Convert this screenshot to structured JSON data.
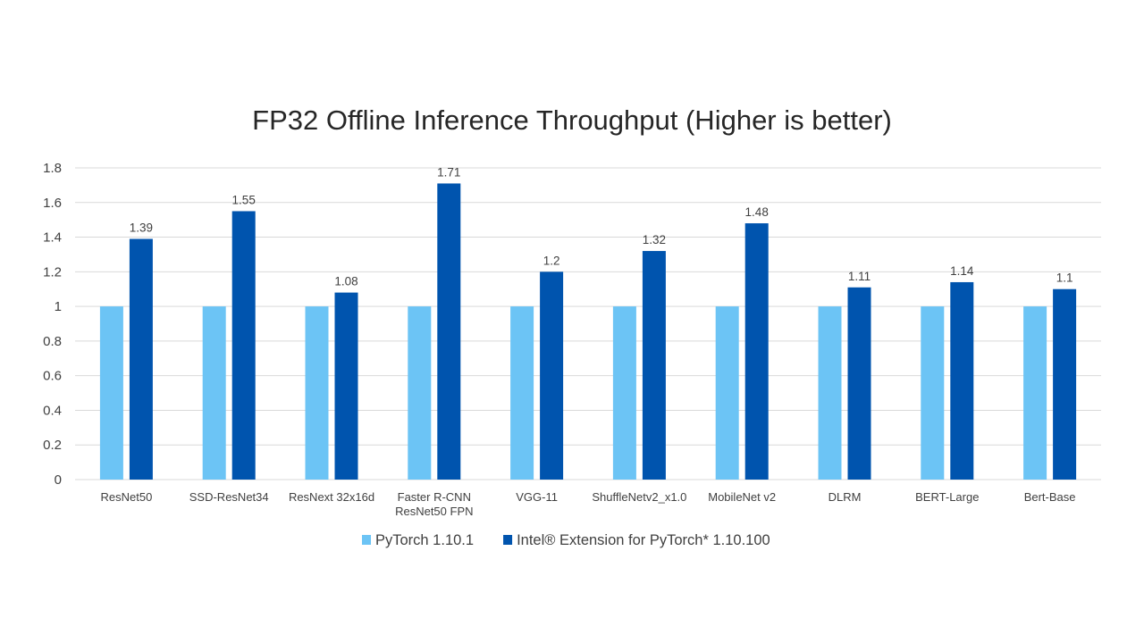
{
  "chart_data": {
    "type": "bar",
    "title": "FP32 Offline Inference Throughput (Higher is better)",
    "xlabel": "",
    "ylabel": "",
    "ylim": [
      0,
      1.8
    ],
    "yticks": [
      "0",
      "0.2",
      "0.4",
      "0.6",
      "0.8",
      "1",
      "1.2",
      "1.4",
      "1.6",
      "1.8"
    ],
    "grid": true,
    "legend_position": "bottom",
    "categories": [
      [
        "ResNet50"
      ],
      [
        "SSD-ResNet34"
      ],
      [
        "ResNext 32x16d"
      ],
      [
        "Faster R-CNN",
        "ResNet50 FPN"
      ],
      [
        "VGG-11"
      ],
      [
        "ShuffleNetv2_x1.0"
      ],
      [
        "MobileNet v2"
      ],
      [
        "DLRM"
      ],
      [
        "BERT-Large"
      ],
      [
        "Bert-Base"
      ]
    ],
    "series": [
      {
        "name": "PyTorch 1.10.1",
        "color": "#6cc4f5",
        "values": [
          1,
          1,
          1,
          1,
          1,
          1,
          1,
          1,
          1,
          1
        ],
        "labels": false
      },
      {
        "name": "Intel® Extension for PyTorch* 1.10.100",
        "color": "#0054ae",
        "values": [
          1.39,
          1.55,
          1.08,
          1.71,
          1.2,
          1.32,
          1.48,
          1.11,
          1.14,
          1.1
        ],
        "labels": true
      }
    ]
  }
}
